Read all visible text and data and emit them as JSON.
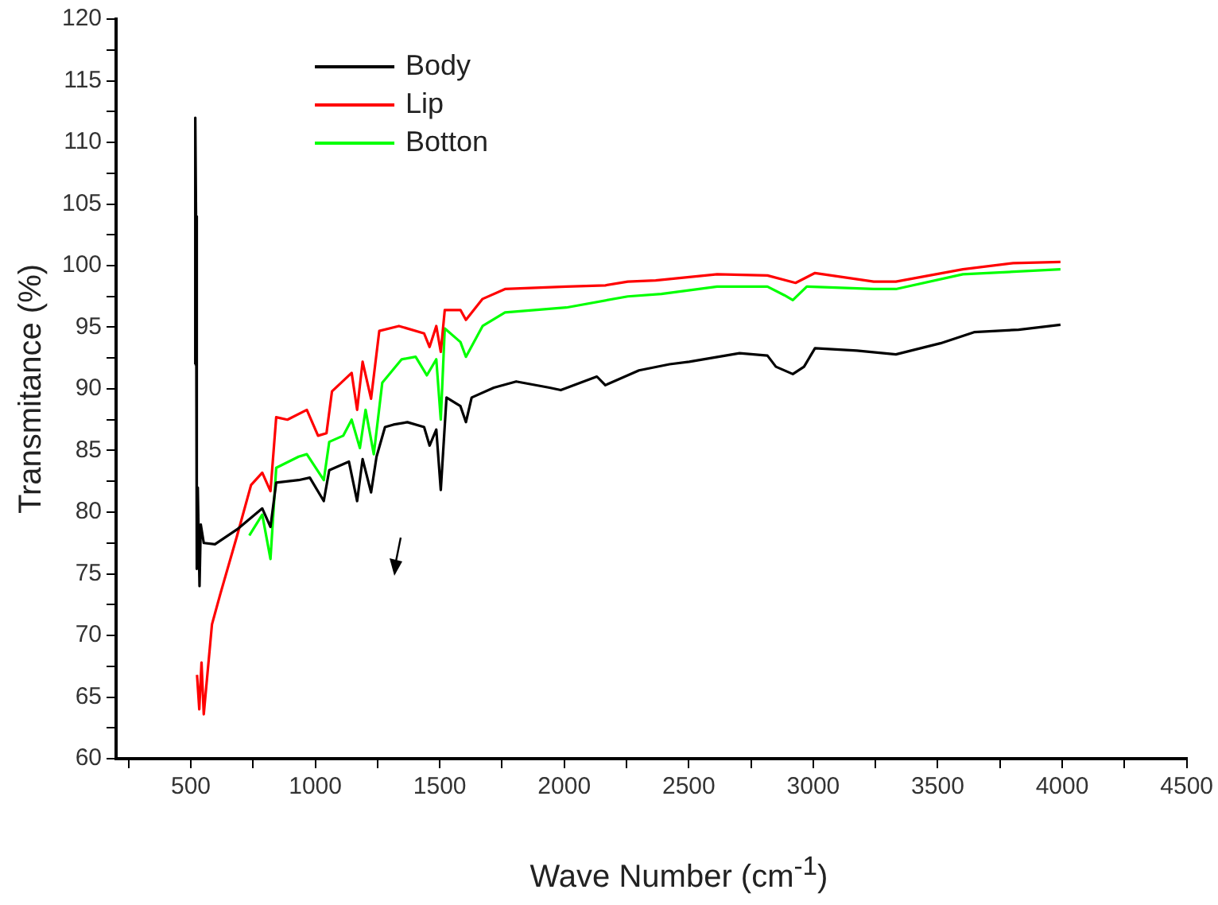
{
  "chart_data": {
    "type": "line",
    "xlabel": "Wave Number (cm$^{-1}$)",
    "ylabel": "Transmitance (%)",
    "xlim": [
      200,
      4500
    ],
    "ylim": [
      60,
      120
    ],
    "xticks": [
      {
        "value": 250,
        "label": null
      },
      500,
      {
        "value": 750,
        "label": null
      },
      1000,
      {
        "value": 1250,
        "label": null
      },
      1500,
      {
        "value": 1750,
        "label": null
      },
      2000,
      {
        "value": 2250,
        "label": null
      },
      2500,
      {
        "value": 2750,
        "label": null
      },
      3000,
      {
        "value": 3250,
        "label": null
      },
      3500,
      {
        "value": 3750,
        "label": null
      },
      4000,
      {
        "value": 4250,
        "label": null
      },
      4500
    ],
    "yticks": [
      60,
      {
        "value": 62.5,
        "label": null
      },
      65,
      {
        "value": 67.5,
        "label": null
      },
      70,
      {
        "value": 72.5,
        "label": null
      },
      75,
      {
        "value": 77.5,
        "label": null
      },
      80,
      {
        "value": 82.5,
        "label": null
      },
      85,
      {
        "value": 87.5,
        "label": null
      },
      90,
      {
        "value": 92.5,
        "label": null
      },
      95,
      {
        "value": 97.5,
        "label": null
      },
      100,
      {
        "value": 102.5,
        "label": null
      },
      105,
      {
        "value": 107.5,
        "label": null
      },
      110,
      {
        "value": 112.5,
        "label": null
      },
      115,
      {
        "value": 117.5,
        "label": null
      },
      120
    ],
    "grid": false,
    "legend": "top left",
    "marker": "none",
    "line_style": "solid",
    "series": [
      {
        "name": "Body",
        "color": "#000000",
        "x": [
          515,
          518,
          521,
          524,
          528,
          535,
          540,
          552,
          597,
          686,
          787,
          820,
          843,
          933,
          978,
          1034,
          1056,
          1135,
          1168,
          1190,
          1224,
          1246,
          1280,
          1314,
          1370,
          1437,
          1459,
          1486,
          1504,
          1527,
          1583,
          1605,
          1628,
          1717,
          1807,
          1941,
          1986,
          2131,
          2165,
          2300,
          2423,
          2502,
          2704,
          2816,
          2850,
          2918,
          2963,
          3007,
          3175,
          3332,
          3511,
          3646,
          3825,
          3993
        ],
        "values": [
          92,
          112,
          104,
          75.4,
          82,
          74,
          79,
          77.5,
          77.4,
          78.6,
          80.3,
          78.8,
          82.4,
          82.6,
          82.8,
          80.9,
          83.4,
          84.1,
          80.9,
          84.3,
          81.6,
          84.5,
          86.9,
          87.1,
          87.3,
          86.9,
          85.4,
          86.7,
          81.8,
          89.3,
          88.6,
          87.3,
          89.3,
          90.1,
          90.6,
          90.1,
          89.9,
          91,
          90.3,
          91.5,
          92,
          92.2,
          92.9,
          92.7,
          91.8,
          91.2,
          91.8,
          93.3,
          93.1,
          92.8,
          93.7,
          94.6,
          94.8,
          95.2
        ]
      },
      {
        "name": "Lip",
        "color": "#ff0000",
        "x": [
          525,
          534,
          543,
          552,
          585,
          619,
          686,
          742,
          787,
          820,
          843,
          888,
          966,
          1011,
          1045,
          1067,
          1146,
          1168,
          1190,
          1224,
          1257,
          1336,
          1437,
          1459,
          1486,
          1504,
          1520,
          1583,
          1605,
          1672,
          1762,
          2008,
          2165,
          2255,
          2367,
          2614,
          2816,
          2929,
          3007,
          3243,
          3332,
          3601,
          3803,
          3993
        ],
        "values": [
          66.8,
          64,
          67.8,
          63.6,
          70.9,
          73.4,
          78.1,
          82.2,
          83.2,
          81.7,
          87.7,
          87.5,
          88.3,
          86.2,
          86.4,
          89.8,
          91.3,
          88.3,
          92.2,
          89.2,
          94.7,
          95.1,
          94.5,
          93.4,
          95.1,
          93,
          96.4,
          96.4,
          95.6,
          97.3,
          98.1,
          98.3,
          98.4,
          98.7,
          98.8,
          99.3,
          99.2,
          98.6,
          99.4,
          98.7,
          98.7,
          99.7,
          100.2,
          100.3
        ]
      },
      {
        "name": "Botton",
        "color": "#00ff00",
        "x": [
          735,
          787,
          820,
          843,
          933,
          966,
          1034,
          1056,
          1112,
          1146,
          1179,
          1202,
          1235,
          1269,
          1347,
          1403,
          1448,
          1486,
          1504,
          1520,
          1583,
          1605,
          1672,
          1762,
          2008,
          2255,
          2390,
          2614,
          2816,
          2884,
          2918,
          2974,
          3243,
          3332,
          3601,
          3993
        ],
        "values": [
          78.1,
          79.8,
          76.2,
          83.6,
          84.5,
          84.7,
          82.6,
          85.7,
          86.2,
          87.5,
          85.2,
          88.3,
          84.7,
          90.5,
          92.4,
          92.6,
          91.1,
          92.4,
          87.5,
          94.9,
          93.8,
          92.6,
          95.1,
          96.2,
          96.6,
          97.5,
          97.7,
          98.3,
          98.3,
          97.6,
          97.2,
          98.3,
          98.1,
          98.1,
          99.3,
          99.7
        ]
      }
    ]
  }
}
